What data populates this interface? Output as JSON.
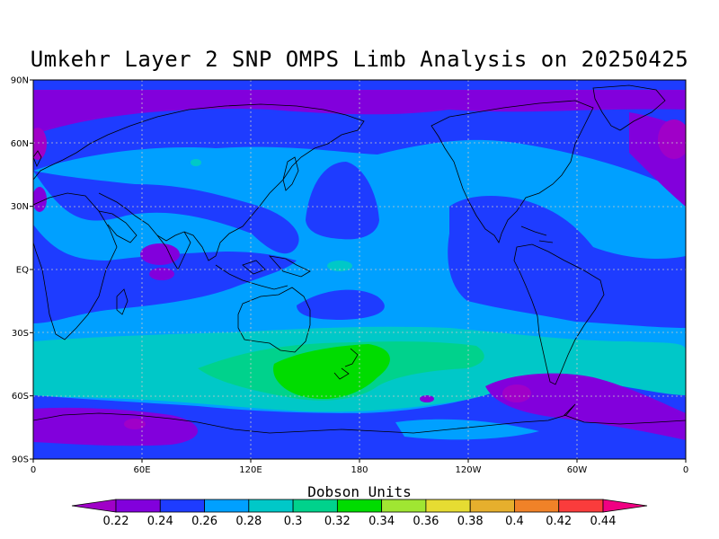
{
  "title": "Umkehr Layer 2 SNP OMPS Limb Analysis on 20250425",
  "chart_data": {
    "type": "heatmap",
    "title": "Umkehr Layer 2 SNP OMPS Limb Analysis on 20250425",
    "projection": "cylindrical-equidistant",
    "x_ticks": [
      "0",
      "60E",
      "120E",
      "180",
      "120W",
      "60W",
      "0"
    ],
    "y_ticks": [
      "90N",
      "60N",
      "30N",
      "EQ",
      "30S",
      "60S",
      "90S"
    ],
    "grid": true,
    "colorbar": {
      "title": "Dobson Units",
      "levels": [
        "0.22",
        "0.24",
        "0.26",
        "0.28",
        "0.3",
        "0.32",
        "0.34",
        "0.36",
        "0.38",
        "0.4",
        "0.42",
        "0.44"
      ],
      "colors": [
        "#a000c8",
        "#8200dc",
        "#1e3cff",
        "#00a0ff",
        "#00c8c8",
        "#00d28c",
        "#00dc00",
        "#a0e632",
        "#e6dc32",
        "#e6af2d",
        "#f08228",
        "#fa3c3c",
        "#f00082"
      ]
    }
  }
}
